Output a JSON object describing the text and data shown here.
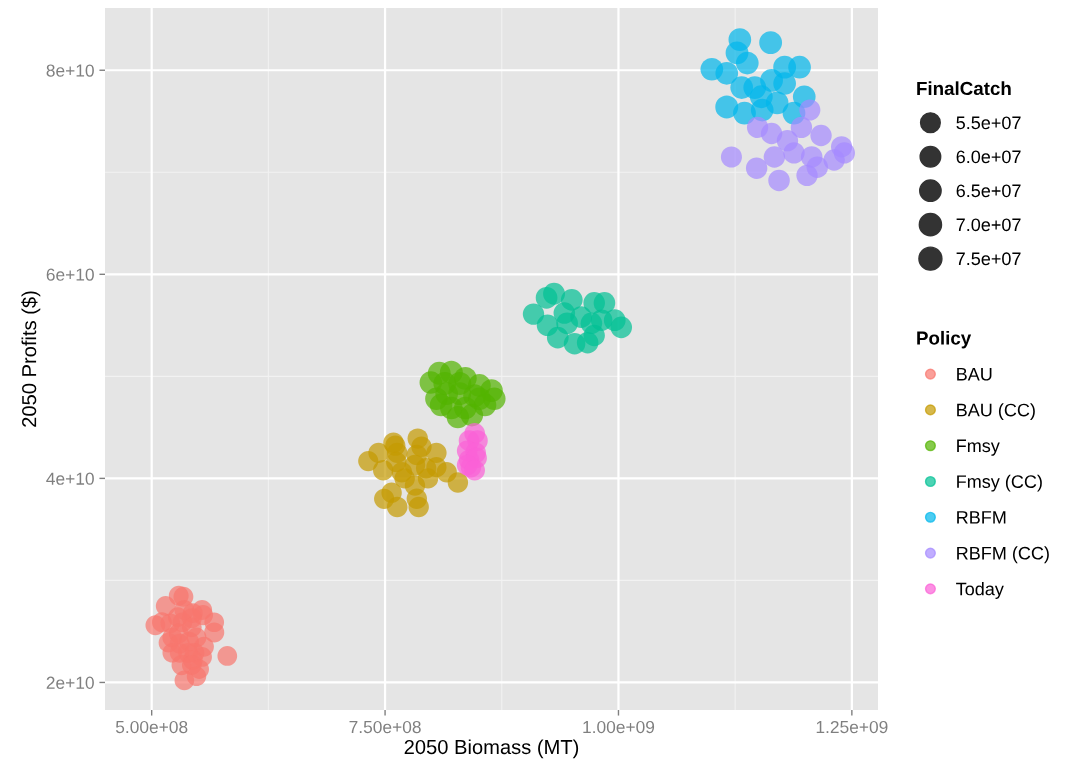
{
  "chart_data": {
    "type": "bubble",
    "xlabel": "2050 Biomass (MT)",
    "ylabel": "2050 Profits ($)",
    "legend_title": "Policy",
    "annotations": [
      "FinalCatch"
    ],
    "xlim": [
      450000000.0,
      1278000000.0
    ],
    "ylim": [
      17300000000.0,
      86100000000.0
    ],
    "xticks": [
      {
        "value": 500000000.0,
        "label": "5.00e+08"
      },
      {
        "value": 750000000.0,
        "label": "7.50e+08"
      },
      {
        "value": 1000000000.0,
        "label": "1.00e+09"
      },
      {
        "value": 1250000000.0,
        "label": "1.25e+09"
      }
    ],
    "yticks": [
      {
        "value": 20000000000.0,
        "label": "2e+10"
      },
      {
        "value": 40000000000.0,
        "label": "4e+10"
      },
      {
        "value": 60000000000.0,
        "label": "6e+10"
      },
      {
        "value": 80000000000.0,
        "label": "8e+10"
      }
    ],
    "size_legend": [
      {
        "value": 55000000.0,
        "label": "5.5e+07"
      },
      {
        "value": 60000000.0,
        "label": "6.0e+07"
      },
      {
        "value": 65000000.0,
        "label": "6.5e+07"
      },
      {
        "value": 70000000.0,
        "label": "7.0e+07"
      },
      {
        "value": 75000000.0,
        "label": "7.5e+07"
      }
    ],
    "grid": true,
    "legend": "right",
    "marker": "circle",
    "series": [
      {
        "name": "BAU",
        "color": "#f8766d",
        "x": [
          529000000.0,
          534000000.0,
          515000000.0,
          535000000.0,
          554000000.0,
          555000000.0,
          544000000.0,
          504000000.0,
          511000000.0,
          520000000.0,
          528000000.0,
          533000000.0,
          543000000.0,
          567000000.0,
          567000000.0,
          543000000.0,
          529000000.0,
          522000000.0,
          518000000.0,
          548000000.0,
          540000000.0,
          530000000.0,
          556000000.0,
          522000000.0,
          530000000.0,
          539000000.0,
          546000000.0,
          554000000.0,
          544000000.0,
          532000000.0,
          543000000.0,
          581000000.0,
          551000000.0,
          548000000.0,
          535000000.0
        ],
        "values": [
          28500000000.0,
          28400000000.0,
          27500000000.0,
          27100000000.0,
          27100000000.0,
          26600000000.0,
          26800000000.0,
          25600000000.0,
          25900000000.0,
          25800000000.0,
          26400000000.0,
          25900000000.0,
          26300000000.0,
          25900000000.0,
          24900000000.0,
          25400000000.0,
          24800000000.0,
          24400000000.0,
          23900000000.0,
          24400000000.0,
          24000000000.0,
          23800000000.0,
          23500000000.0,
          22900000000.0,
          22900000000.0,
          22900000000.0,
          22900000000.0,
          22500000000.0,
          22200000000.0,
          21700000000.0,
          21700000000.0,
          22600000000.0,
          21300000000.0,
          20600000000.0,
          20200000000.0
        ],
        "sizes": [
          56000000.0,
          56000000.0,
          55000000.0,
          56000000.0,
          57000000.0,
          57000000.0,
          56000000.0,
          56000000.0,
          56000000.0,
          55000000.0,
          55000000.0,
          55000000.0,
          56000000.0,
          55000000.0,
          57000000.0,
          55000000.0,
          56000000.0,
          55000000.0,
          55000000.0,
          56000000.0,
          56000000.0,
          56000000.0,
          56000000.0,
          54000000.0,
          55000000.0,
          56000000.0,
          55000000.0,
          55000000.0,
          56000000.0,
          57000000.0,
          55000000.0,
          55000000.0,
          53500000.0,
          54000000.0,
          54500000.0
        ]
      },
      {
        "name": "BAU (CC)",
        "color": "#c49a00",
        "x": [
          732000000.0,
          743000000.0,
          759000000.0,
          761000000.0,
          785000000.0,
          789000000.0,
          805000000.0,
          784000000.0,
          763000000.0,
          762000000.0,
          748000000.0,
          768000000.0,
          782000000.0,
          794000000.0,
          805000000.0,
          816000000.0,
          796000000.0,
          782000000.0,
          828000000.0,
          757000000.0,
          749000000.0,
          763000000.0,
          784000000.0,
          786000000.0,
          771000000.0
        ],
        "values": [
          41700000000.0,
          42500000000.0,
          43500000000.0,
          43200000000.0,
          43900000000.0,
          43100000000.0,
          42500000000.0,
          42300000000.0,
          42500000000.0,
          41600000000.0,
          40800000000.0,
          40600000000.0,
          41300000000.0,
          41000000000.0,
          41100000000.0,
          40600000000.0,
          40000000000.0,
          39300000000.0,
          39600000000.0,
          38600000000.0,
          38000000000.0,
          37200000000.0,
          38000000000.0,
          37200000000.0,
          40000000000.0
        ],
        "sizes": [
          58000000.0,
          59000000.0,
          59000000.0,
          58000000.0,
          59000000.0,
          59000000.0,
          59000000.0,
          60000000.0,
          59000000.0,
          59000000.0,
          59000000.0,
          60000000.0,
          60000000.0,
          59000000.0,
          58000000.0,
          59000000.0,
          59000000.0,
          59000000.0,
          59000000.0,
          59000000.0,
          58000000.0,
          60000000.0,
          59000000.0,
          59000000.0,
          59000000.0
        ]
      },
      {
        "name": "Fmsy",
        "color": "#53b400",
        "x": [
          799000000.0,
          808000000.0,
          821000000.0,
          836000000.0,
          851000000.0,
          867000000.0,
          864000000.0,
          805000000.0,
          816000000.0,
          830000000.0,
          846000000.0,
          857000000.0,
          821000000.0,
          836000000.0,
          828000000.0,
          843000000.0,
          814000000.0,
          830000000.0,
          810000000.0,
          851000000.0
        ],
        "values": [
          49400000000.0,
          50300000000.0,
          50400000000.0,
          49800000000.0,
          49100000000.0,
          47800000000.0,
          48600000000.0,
          47800000000.0,
          48300000000.0,
          48300000000.0,
          48100000000.0,
          47200000000.0,
          46900000000.0,
          46900000000.0,
          46000000000.0,
          46200000000.0,
          49300000000.0,
          49300000000.0,
          47200000000.0,
          47800000000.0
        ],
        "sizes": [
          72000000.0,
          74000000.0,
          75000000.0,
          73000000.0,
          74000000.0,
          72000000.0,
          73000000.0,
          72000000.0,
          73000000.0,
          74000000.0,
          75000000.0,
          73000000.0,
          72000000.0,
          73000000.0,
          71000000.0,
          72000000.0,
          74000000.0,
          75000000.0,
          72000000.0,
          73000000.0
        ]
      },
      {
        "name": "Fmsy (CC)",
        "color": "#00c094",
        "x": [
          909000000.0,
          923000000.0,
          931000000.0,
          950000000.0,
          974000000.0,
          985000000.0,
          1003000000.0,
          996000000.0,
          924000000.0,
          935000000.0,
          953000000.0,
          967000000.0,
          974000000.0,
          945000000.0,
          960000000.0,
          982000000.0,
          942000000.0,
          971000000.0
        ],
        "values": [
          56100000000.0,
          57700000000.0,
          58100000000.0,
          57500000000.0,
          57200000000.0,
          57200000000.0,
          54800000000.0,
          55500000000.0,
          55000000000.0,
          53800000000.0,
          53200000000.0,
          53300000000.0,
          54000000000.0,
          55200000000.0,
          55800000000.0,
          55500000000.0,
          56200000000.0,
          55200000000.0
        ],
        "sizes": [
          65000000.0,
          67000000.0,
          68000000.0,
          67000000.0,
          66000000.0,
          66000000.0,
          66000000.0,
          67000000.0,
          66000000.0,
          67000000.0,
          66000000.0,
          66000000.0,
          65000000.0,
          67000000.0,
          67000000.0,
          66000000.0,
          66000000.0,
          66000000.0
        ]
      },
      {
        "name": "RBFM",
        "color": "#00b6eb",
        "x": [
          1130000000.0,
          1163000000.0,
          1100000000.0,
          1116000000.0,
          1127000000.0,
          1138000000.0,
          1178000000.0,
          1194000000.0,
          1116000000.0,
          1135000000.0,
          1154000000.0,
          1170000000.0,
          1188000000.0,
          1199000000.0,
          1146000000.0,
          1164000000.0,
          1178000000.0,
          1132000000.0,
          1153000000.0
        ],
        "values": [
          83000000000.0,
          82700000000.0,
          80100000000.0,
          79700000000.0,
          81700000000.0,
          80700000000.0,
          80300000000.0,
          80300000000.0,
          76400000000.0,
          75800000000.0,
          76100000000.0,
          76800000000.0,
          75800000000.0,
          77400000000.0,
          78300000000.0,
          79000000000.0,
          78700000000.0,
          78300000000.0,
          77400000000.0
        ],
        "sizes": [
          73000000.0,
          74000000.0,
          73000000.0,
          73000000.0,
          74000000.0,
          73000000.0,
          74000000.0,
          73000000.0,
          75000000.0,
          74000000.0,
          73000000.0,
          73000000.0,
          74000000.0,
          73000000.0,
          74000000.0,
          74000000.0,
          73000000.0,
          73000000.0,
          74000000.0
        ]
      },
      {
        "name": "RBFM (CC)",
        "color": "#a58aff",
        "x": [
          1121000000.0,
          1148000000.0,
          1172000000.0,
          1202000000.0,
          1167000000.0,
          1188000000.0,
          1217000000.0,
          1239000000.0,
          1242000000.0,
          1231000000.0,
          1207000000.0,
          1181000000.0,
          1164000000.0,
          1149000000.0,
          1205000000.0,
          1196000000.0,
          1213000000.0
        ],
        "values": [
          71500000000.0,
          70400000000.0,
          69200000000.0,
          69700000000.0,
          71500000000.0,
          71900000000.0,
          73600000000.0,
          72500000000.0,
          71900000000.0,
          71200000000.0,
          71500000000.0,
          73100000000.0,
          73800000000.0,
          74400000000.0,
          76100000000.0,
          74400000000.0,
          70500000000.0
        ],
        "sizes": [
          63000000.0,
          65000000.0,
          66000000.0,
          65000000.0,
          65000000.0,
          65000000.0,
          65000000.0,
          64000000.0,
          64000000.0,
          65000000.0,
          66000000.0,
          65000000.0,
          65000000.0,
          64000000.0,
          63000000.0,
          65000000.0,
          65000000.0
        ]
      },
      {
        "name": "Today",
        "color": "#fb61d7",
        "x": [
          846000000.0,
          840000000.0,
          849000000.0,
          838000000.0,
          847000000.0,
          840000000.0,
          848000000.0,
          842000000.0,
          838000000.0,
          846000000.0
        ],
        "values": [
          44400000000.0,
          43700000000.0,
          43700000000.0,
          42700000000.0,
          42500000000.0,
          41800000000.0,
          42000000000.0,
          41100000000.0,
          41300000000.0,
          40800000000.0
        ],
        "sizes": [
          61000000.0,
          61000000.0,
          60000000.0,
          61000000.0,
          61000000.0,
          60000000.0,
          61000000.0,
          60000000.0,
          61000000.0,
          60000000.0
        ]
      }
    ]
  }
}
